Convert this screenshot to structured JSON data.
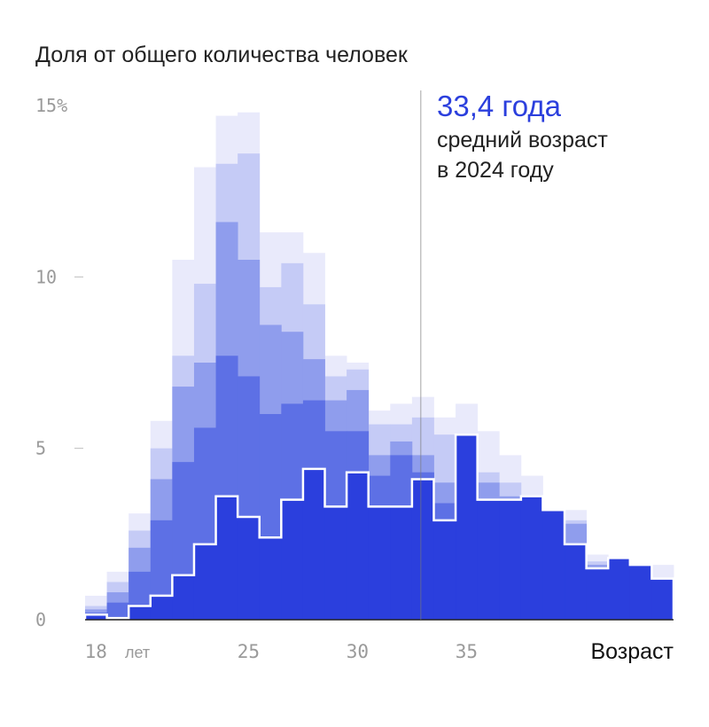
{
  "chart_data": {
    "type": "bar",
    "title": "Доля от общего количества человек",
    "xlabel": "Возраст",
    "x_unit_label": "лет",
    "ylim": [
      0,
      15
    ],
    "y_ticks": [
      {
        "value": 0,
        "label": "0"
      },
      {
        "value": 5,
        "label": "5"
      },
      {
        "value": 10,
        "label": "10"
      },
      {
        "value": 15,
        "label": "15%"
      }
    ],
    "x_ticks": [
      {
        "value": 18,
        "label": "18"
      },
      {
        "value": 25,
        "label": "25"
      },
      {
        "value": 30,
        "label": "30"
      },
      {
        "value": 35,
        "label": "35"
      }
    ],
    "categories": [
      18,
      19,
      20,
      21,
      22,
      23,
      24,
      25,
      26,
      27,
      28,
      29,
      30,
      31,
      32,
      33,
      34,
      35,
      36,
      37,
      38,
      39,
      40,
      41,
      42,
      43,
      44
    ],
    "series": [
      {
        "values": [
          0.7,
          1.4,
          3.1,
          5.8,
          10.5,
          13.2,
          14.7,
          14.8,
          11.3,
          11.3,
          10.7,
          7.7,
          7.5,
          6.1,
          6.3,
          6.5,
          5.9,
          6.3,
          5.5,
          4.8,
          4.2,
          3.2,
          3.2,
          1.9,
          1.8,
          1.6,
          1.6
        ]
      },
      {
        "values": [
          0.4,
          1.1,
          2.6,
          5.0,
          7.7,
          9.8,
          13.3,
          13.6,
          9.7,
          10.4,
          9.2,
          7.1,
          7.3,
          5.7,
          5.7,
          5.9,
          5.4,
          5.4,
          4.3,
          4.0,
          3.6,
          3.2,
          2.9,
          1.7,
          1.8,
          1.6,
          1.2
        ]
      },
      {
        "values": [
          0.3,
          0.8,
          2.1,
          4.1,
          6.8,
          7.5,
          11.6,
          10.5,
          8.6,
          8.4,
          7.6,
          6.4,
          6.7,
          4.8,
          5.2,
          4.8,
          4.0,
          5.4,
          4.0,
          3.6,
          3.6,
          3.2,
          2.8,
          1.6,
          1.8,
          1.6,
          1.2
        ]
      },
      {
        "values": [
          0.2,
          0.5,
          1.4,
          2.9,
          4.6,
          5.6,
          7.7,
          7.1,
          6.0,
          6.3,
          6.4,
          5.5,
          5.5,
          4.2,
          4.8,
          4.3,
          3.4,
          5.4,
          3.5,
          3.5,
          3.6,
          3.2,
          2.2,
          1.5,
          1.8,
          1.6,
          1.2
        ]
      },
      {
        "values": [
          0.15,
          0.05,
          0.4,
          0.7,
          1.3,
          2.2,
          3.6,
          3.0,
          2.4,
          3.5,
          4.4,
          3.3,
          4.3,
          3.3,
          3.3,
          4.1,
          2.9,
          5.4,
          3.5,
          3.5,
          3.6,
          3.2,
          2.2,
          1.5,
          1.8,
          1.6,
          1.2
        ]
      }
    ],
    "colors": [
      "#e9eafb",
      "#c5cbf6",
      "#8f9ded",
      "#5d70e5",
      "#2b3fdd"
    ],
    "outline_color": "#ffffff",
    "mean_line": {
      "value": 33.4
    },
    "annotation": {
      "value": "33,4 года",
      "line1": "средний возраст",
      "line2": "в 2024 году",
      "color": "#2b3fdd"
    }
  }
}
